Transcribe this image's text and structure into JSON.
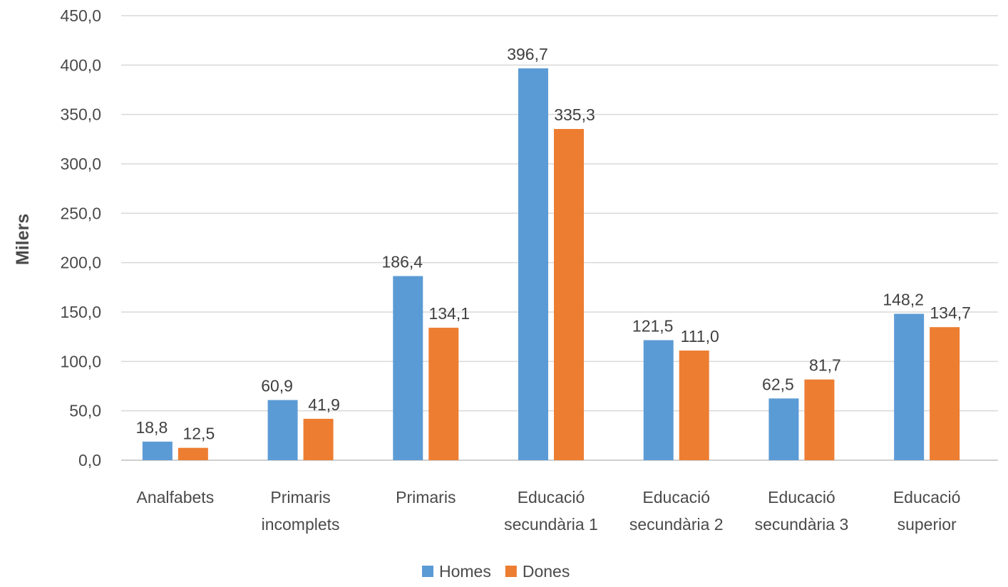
{
  "chart_data": {
    "type": "bar",
    "title": "",
    "xlabel": "",
    "ylabel": "Milers",
    "ylim": [
      0,
      450
    ],
    "ytick_step": 50,
    "ytick_labels": [
      "0,0",
      "50,0",
      "100,0",
      "150,0",
      "200,0",
      "250,0",
      "300,0",
      "350,0",
      "400,0",
      "450,0"
    ],
    "grid": true,
    "legend_position": "bottom",
    "categories": [
      [
        "Analfabets"
      ],
      [
        "Primaris",
        "incomplets"
      ],
      [
        "Primaris"
      ],
      [
        "Educació",
        "secundària 1"
      ],
      [
        "Educació",
        "secundària 2"
      ],
      [
        "Educació",
        "secundària 3"
      ],
      [
        "Educació",
        "superior"
      ]
    ],
    "series": [
      {
        "name": "Homes",
        "color": "#5b9bd5",
        "values": [
          18.8,
          60.9,
          186.4,
          396.7,
          121.5,
          62.5,
          148.2
        ],
        "labels": [
          "18,8",
          "60,9",
          "186,4",
          "396,7",
          "121,5",
          "62,5",
          "148,2"
        ]
      },
      {
        "name": "Dones",
        "color": "#ed7d31",
        "values": [
          12.5,
          41.9,
          134.1,
          335.3,
          111.0,
          81.7,
          134.7
        ],
        "labels": [
          "12,5",
          "41,9",
          "134,1",
          "335,3",
          "111,0",
          "81,7",
          "134,7"
        ]
      }
    ]
  }
}
